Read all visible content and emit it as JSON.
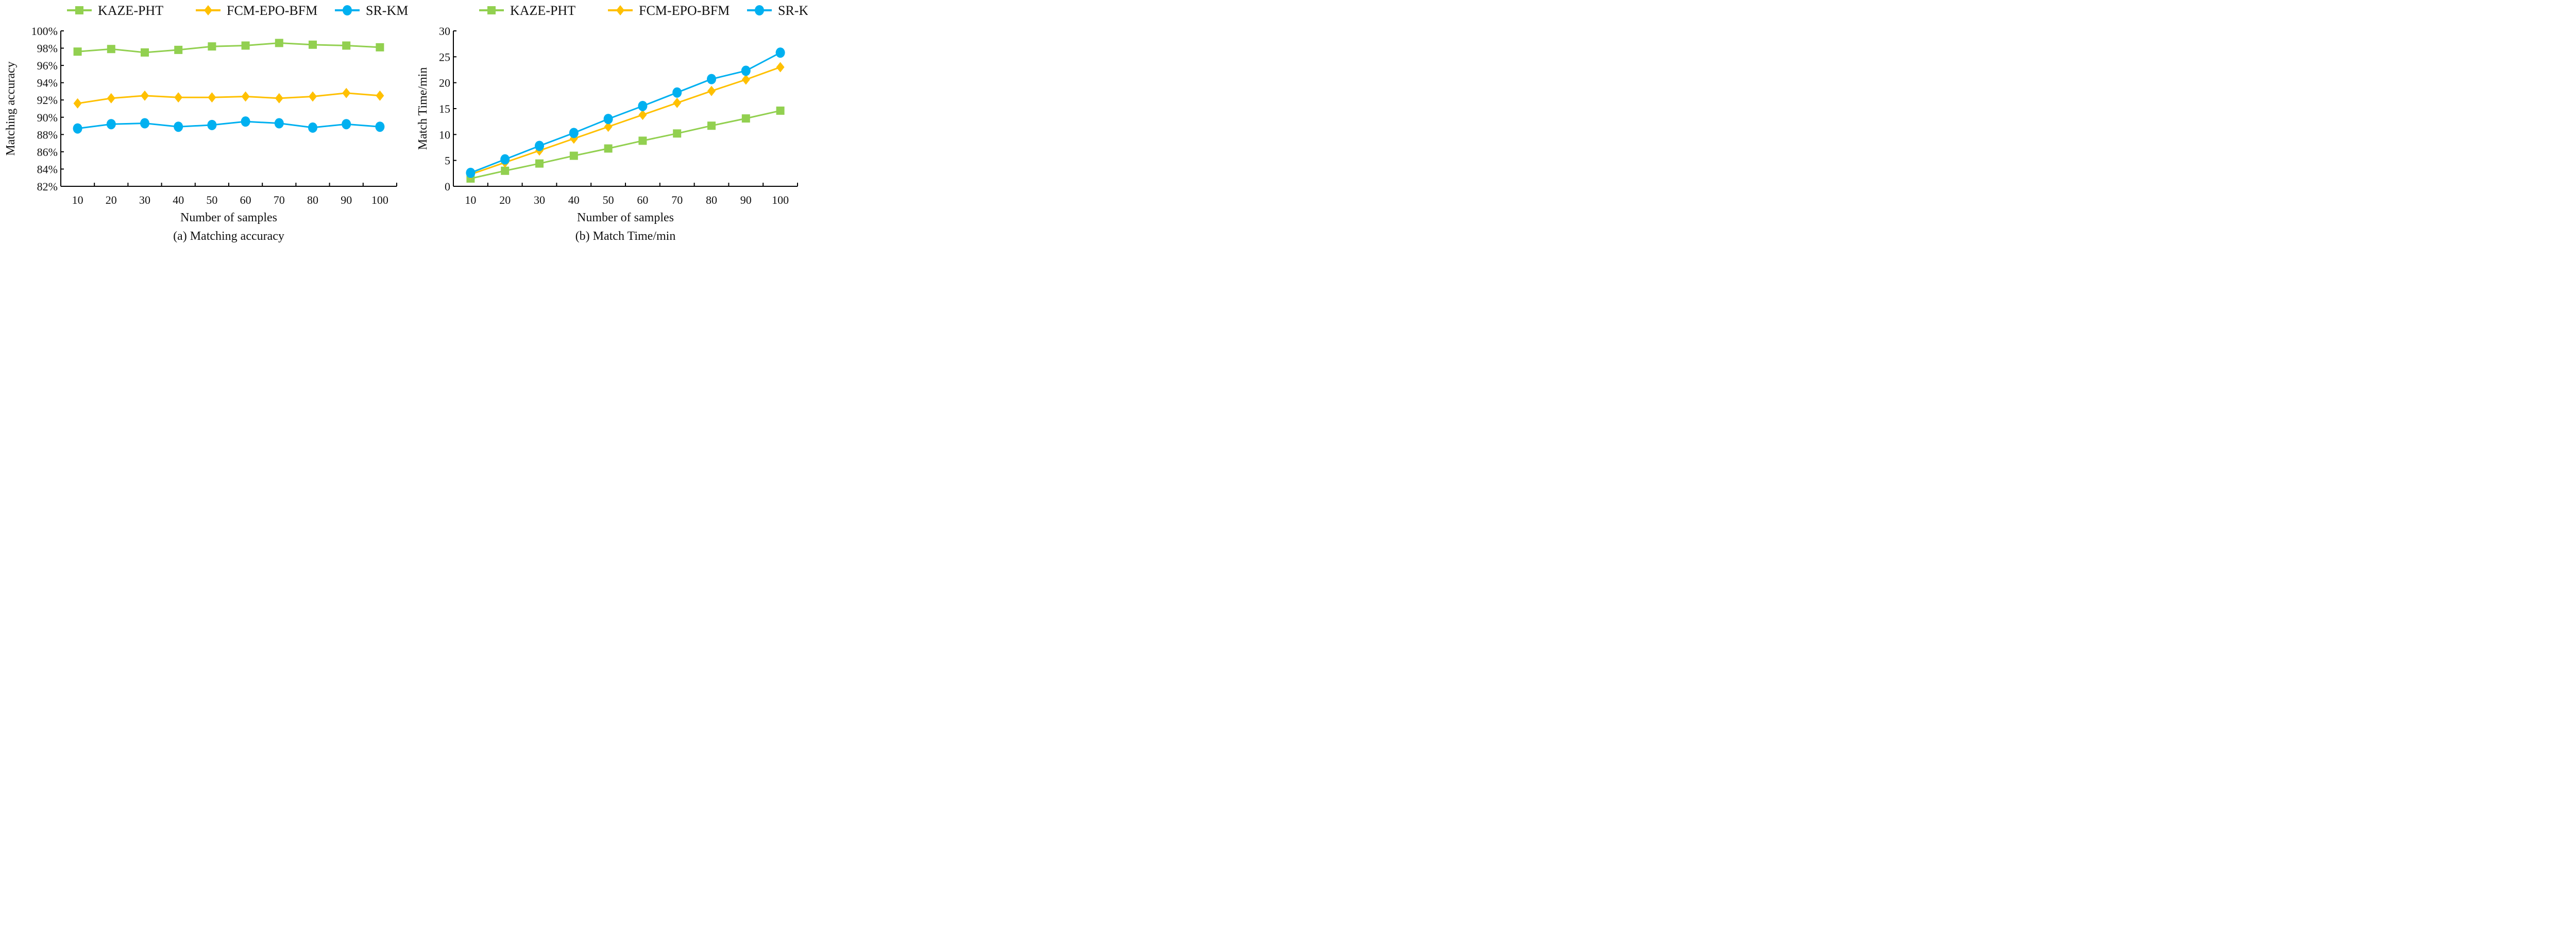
{
  "colors": {
    "KAZE-PHT": "#92d050",
    "FCM-EPO-BFM": "#ffc000",
    "SR-KM": "#00b0f0"
  },
  "chart_data": [
    {
      "type": "line",
      "title": "(a) Matching accuracy",
      "xlabel": "Number of samples",
      "ylabel": "Matching accuracy",
      "x": [
        10,
        20,
        30,
        40,
        50,
        60,
        70,
        80,
        90,
        100
      ],
      "ylim": [
        82,
        100
      ],
      "yticks": [
        82,
        84,
        86,
        88,
        90,
        92,
        94,
        96,
        98,
        100
      ],
      "ytick_labels": [
        "82%",
        "84%",
        "86%",
        "88%",
        "90%",
        "92%",
        "94%",
        "96%",
        "98%",
        "100%"
      ],
      "legend": "top",
      "series": [
        {
          "name": "KAZE-PHT",
          "marker": "square",
          "values": [
            97.6,
            97.9,
            97.5,
            97.8,
            98.2,
            98.3,
            98.6,
            98.4,
            98.3,
            98.1
          ]
        },
        {
          "name": "FCM-EPO-BFM",
          "marker": "diamond",
          "values": [
            91.6,
            92.2,
            92.5,
            92.3,
            92.3,
            92.4,
            92.2,
            92.4,
            92.8,
            92.5
          ]
        },
        {
          "name": "SR-KM",
          "marker": "circle",
          "values": [
            88.7,
            89.2,
            89.3,
            88.9,
            89.1,
            89.5,
            89.3,
            88.8,
            89.2,
            88.9
          ]
        }
      ]
    },
    {
      "type": "line",
      "title": "(b) Match Time/min",
      "xlabel": "Number of samples",
      "ylabel": "Match Time/min",
      "x": [
        10,
        20,
        30,
        40,
        50,
        60,
        70,
        80,
        90,
        100
      ],
      "ylim": [
        0,
        30
      ],
      "yticks": [
        0,
        5,
        10,
        15,
        20,
        25,
        30
      ],
      "ytick_labels": [
        "0",
        "5",
        "10",
        "15",
        "20",
        "25",
        "30"
      ],
      "legend": "top",
      "series": [
        {
          "name": "KAZE-PHT",
          "marker": "square",
          "values": [
            1.5,
            3.0,
            4.4,
            5.9,
            7.3,
            8.8,
            10.2,
            11.7,
            13.1,
            14.6
          ]
        },
        {
          "name": "FCM-EPO-BFM",
          "marker": "diamond",
          "values": [
            2.3,
            4.6,
            6.9,
            9.2,
            11.5,
            13.8,
            16.1,
            18.4,
            20.6,
            23.0
          ]
        },
        {
          "name": "SR-KM",
          "marker": "circle",
          "values": [
            2.6,
            5.2,
            7.8,
            10.3,
            13.0,
            15.5,
            18.1,
            20.7,
            22.3,
            25.8
          ]
        }
      ]
    }
  ]
}
